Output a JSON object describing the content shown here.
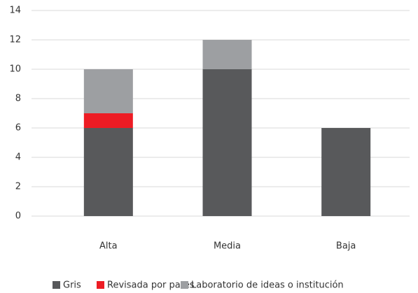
{
  "chart_data": {
    "type": "stacked_bar",
    "categories": [
      "Alta",
      "Media",
      "Baja"
    ],
    "series": [
      {
        "name": "Gris",
        "color": "#58595b",
        "values": [
          6,
          10,
          6
        ]
      },
      {
        "name": "Revisada por pares",
        "color": "#ed1c24",
        "values": [
          1,
          0,
          0
        ]
      },
      {
        "name": "Laboratorio de ideas o institución",
        "color": "#9d9fa2",
        "values": [
          3,
          2,
          0
        ]
      }
    ],
    "ylim": [
      0,
      14
    ],
    "yticks": [
      0,
      2,
      4,
      6,
      8,
      10,
      12,
      14
    ],
    "grid": true,
    "legend": "bottom"
  }
}
